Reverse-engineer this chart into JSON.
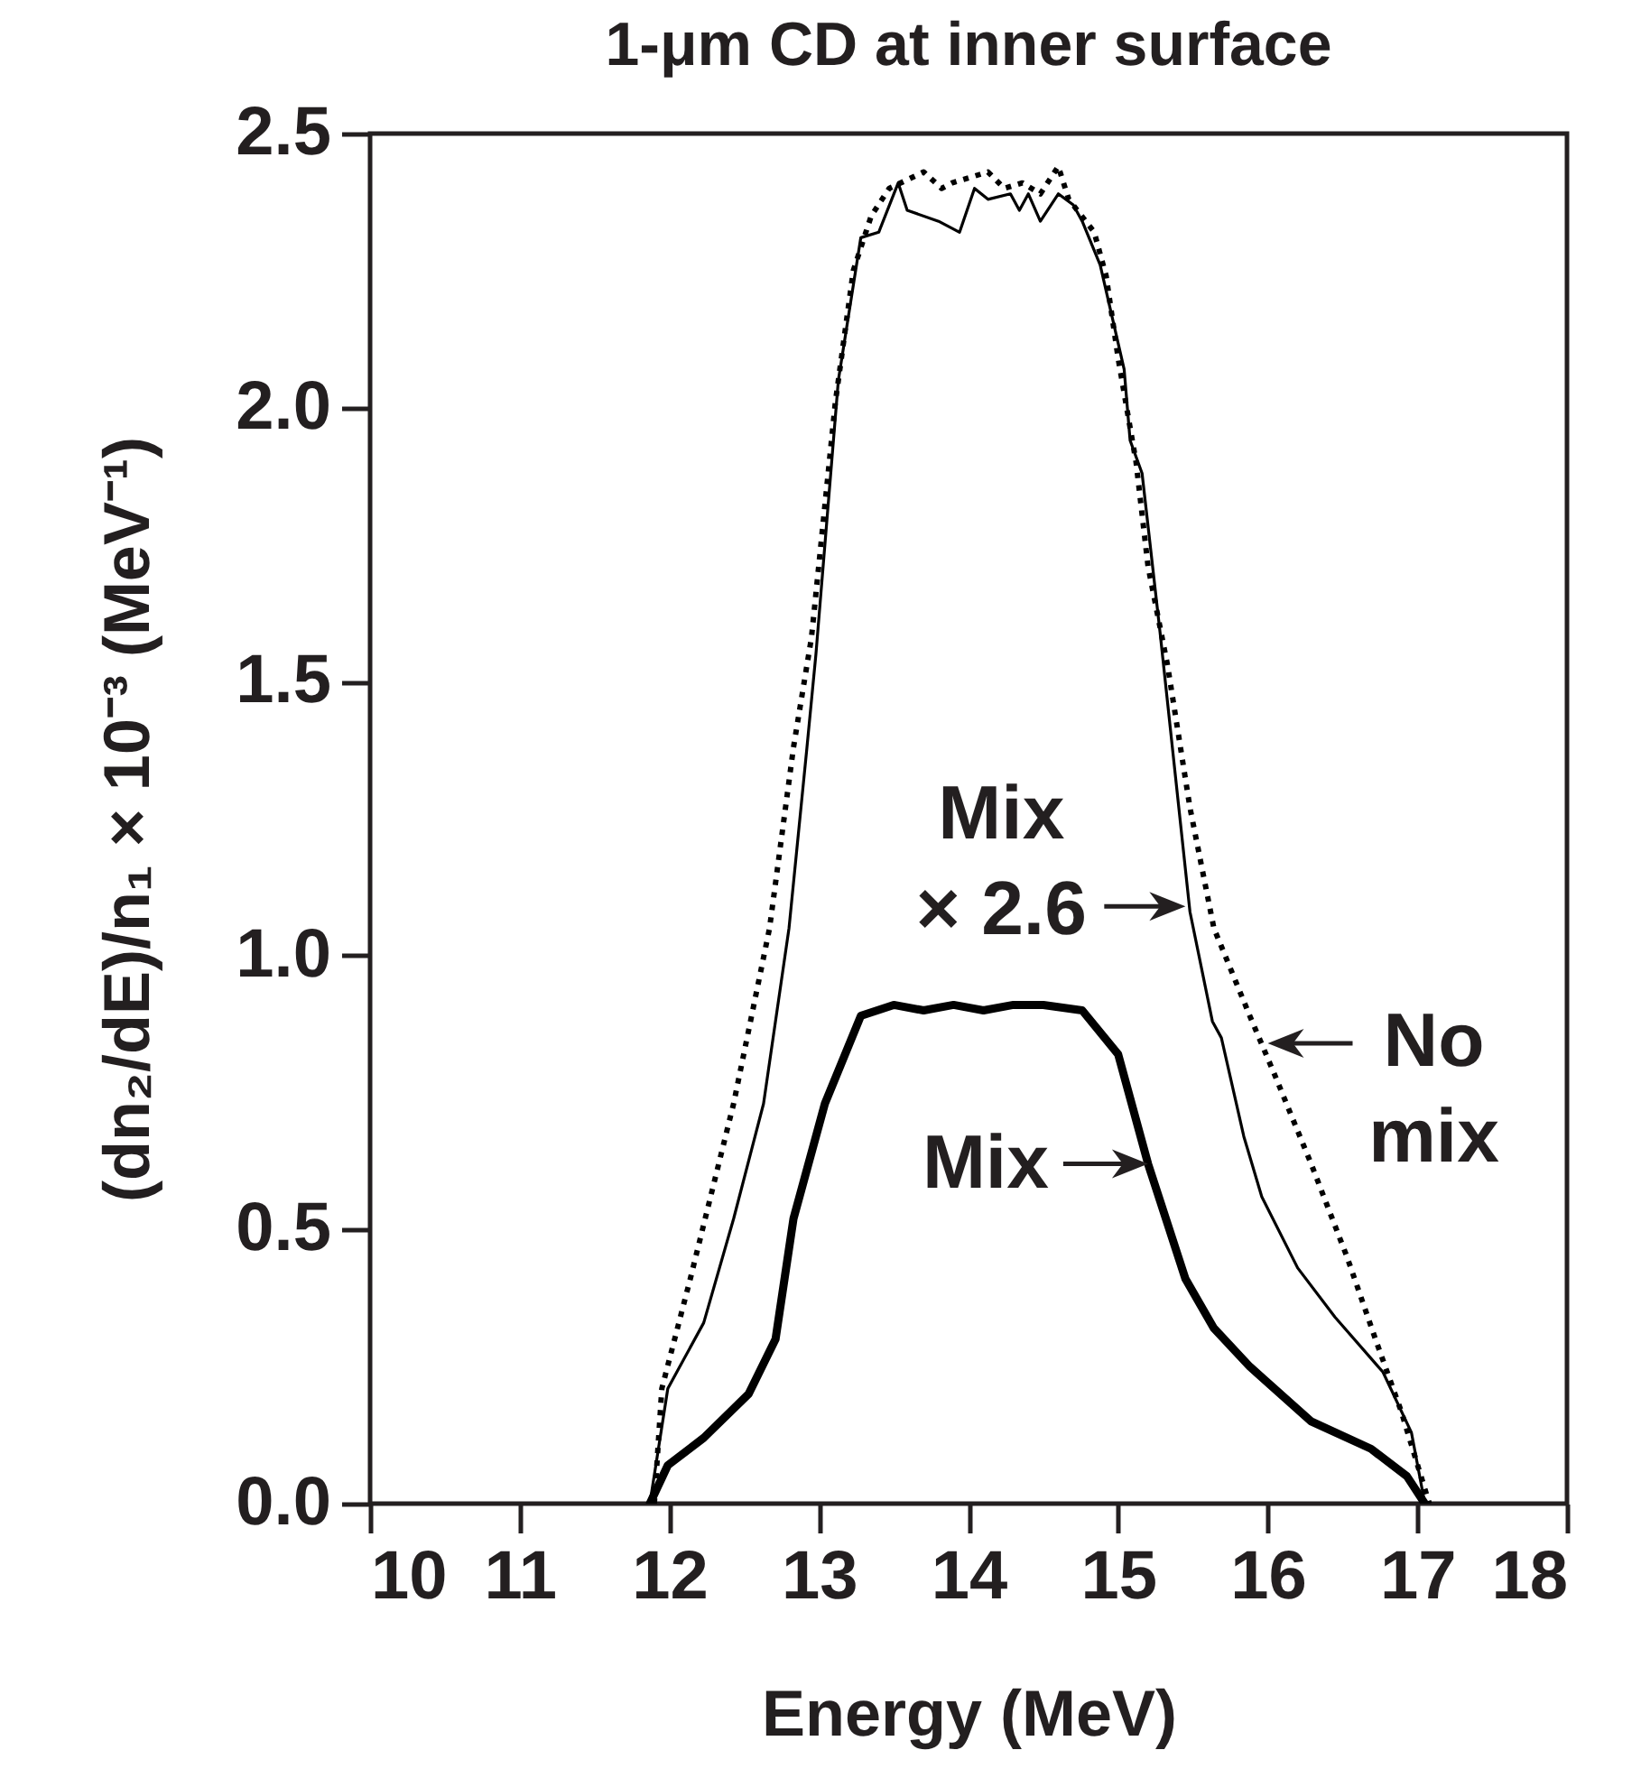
{
  "chart_data": {
    "type": "line",
    "title": "1-μm CD at inner surface",
    "xlabel": "Energy (MeV)",
    "ylabel": "(dn₂/dE)/n₁ × 10⁻³ (MeV⁻¹)",
    "xlim": [
      10,
      18
    ],
    "xticks": [
      10,
      11,
      12,
      13,
      14,
      15,
      16,
      17,
      18
    ],
    "ylim": [
      0,
      2.5
    ],
    "yticks": [
      {
        "value": 0,
        "label": "0.0"
      },
      {
        "value": 0.5,
        "label": "0.5"
      },
      {
        "value": 1,
        "label": "1.0"
      },
      {
        "value": 1.5,
        "label": "1.5"
      },
      {
        "value": 2,
        "label": "2.0"
      },
      {
        "value": 2.5,
        "label": "2.5"
      }
    ],
    "grid": false,
    "series": [
      {
        "color": "#000000",
        "line_style": "dotted",
        "x": [
          11.9,
          11.95,
          12.14,
          12.43,
          12.67,
          12.83,
          12.95,
          13.11,
          13.23,
          13.35,
          13.47,
          13.7,
          13.82,
          13.89,
          14.13,
          14.24,
          14.36,
          14.48,
          14.6,
          14.67,
          14.84,
          14.92,
          15.0,
          15.12,
          15.2,
          15.33,
          15.48,
          15.64,
          15.88,
          16.05,
          16.29,
          16.53,
          16.72,
          16.89,
          17.08
        ],
        "values": [
          0,
          0.21,
          0.41,
          0.73,
          1.05,
          1.38,
          1.58,
          2.01,
          2.25,
          2.35,
          2.4,
          2.43,
          2.4,
          2.41,
          2.43,
          2.4,
          2.41,
          2.39,
          2.44,
          2.38,
          2.32,
          2.24,
          2.09,
          1.9,
          1.71,
          1.53,
          1.27,
          1.05,
          0.89,
          0.78,
          0.62,
          0.45,
          0.3,
          0.17,
          0
        ]
      },
      {
        "color": "#000000",
        "line_style": "solid",
        "x": [
          11.87,
          11.99,
          12.23,
          12.43,
          12.63,
          12.8,
          12.92,
          12.98,
          13.13,
          13.28,
          13.4,
          13.53,
          13.59,
          13.8,
          13.94,
          14.04,
          14.13,
          14.28,
          14.34,
          14.4,
          14.48,
          14.6,
          14.7,
          14.76,
          14.88,
          15.04,
          15.08,
          15.16,
          15.28,
          15.48,
          15.63,
          15.69,
          15.84,
          15.96,
          16.2,
          16.45,
          16.77,
          16.96,
          17.05
        ],
        "values": [
          0,
          0.21,
          0.33,
          0.52,
          0.73,
          1.05,
          1.38,
          1.55,
          2.05,
          2.31,
          2.32,
          2.41,
          2.36,
          2.34,
          2.32,
          2.4,
          2.38,
          2.39,
          2.36,
          2.39,
          2.34,
          2.39,
          2.37,
          2.34,
          2.26,
          2.07,
          1.94,
          1.88,
          1.59,
          1.08,
          0.88,
          0.85,
          0.67,
          0.56,
          0.43,
          0.34,
          0.24,
          0.13,
          0
        ]
      },
      {
        "color": "#000000",
        "line_style": "solid",
        "x": [
          11.87,
          11.99,
          12.23,
          12.53,
          12.71,
          12.83,
          13.04,
          13.28,
          13.5,
          13.7,
          13.9,
          14.1,
          14.3,
          14.5,
          14.76,
          15.0,
          15.2,
          15.45,
          15.64,
          15.88,
          16.29,
          16.69,
          16.93,
          17.05
        ],
        "values": [
          0,
          0.07,
          0.12,
          0.2,
          0.3,
          0.52,
          0.73,
          0.89,
          0.91,
          0.9,
          0.91,
          0.9,
          0.91,
          0.91,
          0.9,
          0.82,
          0.62,
          0.41,
          0.32,
          0.25,
          0.15,
          0.1,
          0.05,
          0
        ]
      }
    ],
    "annotations": [
      {
        "text": "Mix\n× 2.6",
        "x": 15.45,
        "y": 1.09
      },
      {
        "text": "Mix",
        "x": 15.2,
        "y": 0.62
      },
      {
        "text": "No\nmix",
        "x": 16.0,
        "y": 0.84
      }
    ]
  }
}
